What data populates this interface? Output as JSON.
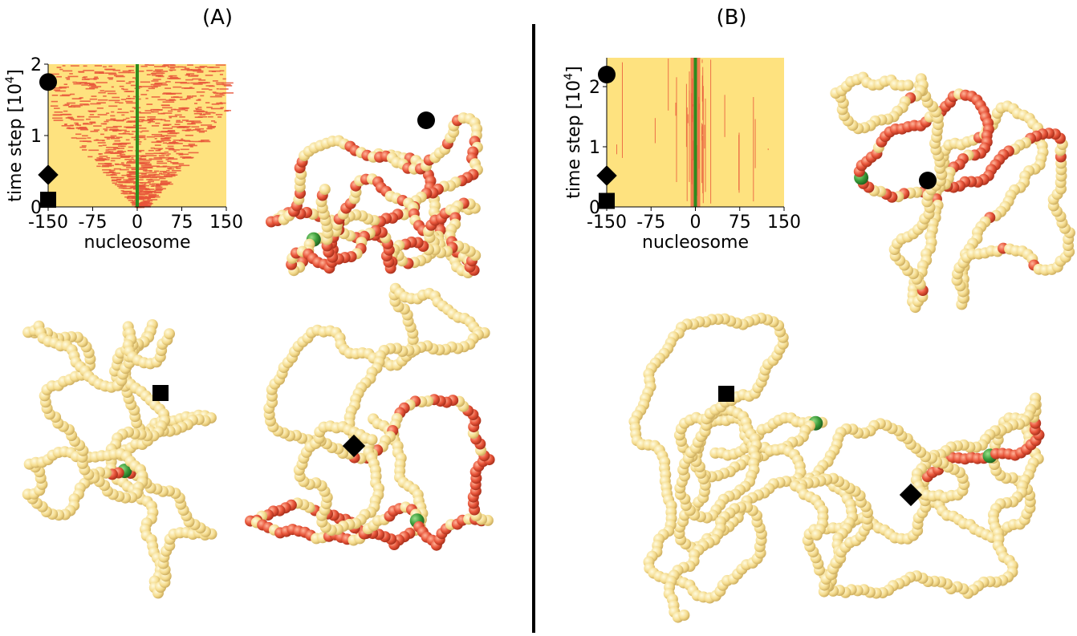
{
  "chart_data": [
    {
      "type": "kymograph",
      "title": "(A)",
      "xlabel": "nucleosome",
      "ylabel_parts": [
        "time step [10",
        "4",
        "]"
      ],
      "xlim": [
        -150,
        150
      ],
      "ylim": [
        0,
        2
      ],
      "xticks": [
        -150,
        -75,
        0,
        75,
        150
      ],
      "yticks": [
        0,
        1,
        2
      ],
      "markers": [
        {
          "shape": "circle",
          "value": 1.75
        },
        {
          "shape": "diamond",
          "value": 0.45
        },
        {
          "shape": "square",
          "value": 0.1
        }
      ],
      "background_color": "#fee27f",
      "mark_color": "#e8553a",
      "center_color": "#2e8b1e"
    },
    {
      "type": "kymograph",
      "title": "(B)",
      "xlabel": "nucleosome",
      "ylabel_parts": [
        "time step [10",
        "4",
        "]"
      ],
      "xlim": [
        -150,
        150
      ],
      "ylim": [
        0,
        2.48
      ],
      "xticks": [
        -150,
        -75,
        0,
        75,
        150
      ],
      "yticks": [
        0,
        1,
        2
      ],
      "markers": [
        {
          "shape": "circle",
          "value": 2.2
        },
        {
          "shape": "diamond",
          "value": 0.52
        },
        {
          "shape": "square",
          "value": 0.1
        }
      ],
      "background_color": "#fee27f",
      "mark_color": "#e8553a",
      "center_color": "#2e8b1e"
    }
  ]
}
